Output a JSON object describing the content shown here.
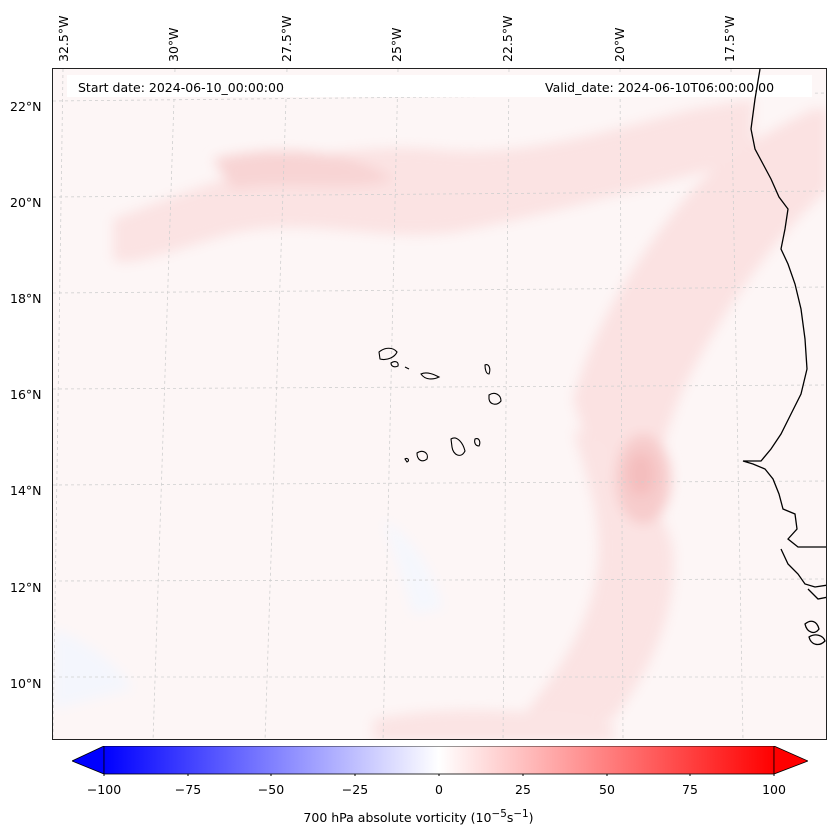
{
  "header": {
    "start_date": "Start date: 2024-06-10_00:00:00",
    "valid_date": "Valid_date: 2024-06-10T06:00:00.00"
  },
  "longitude_labels": [
    "32.5°W",
    "30°W",
    "27.5°W",
    "25°W",
    "22.5°W",
    "20°W",
    "17.5°W"
  ],
  "latitude_labels": [
    "22°N",
    "20°N",
    "18°N",
    "16°N",
    "14°N",
    "12°N",
    "10°N"
  ],
  "colorbar": {
    "min": -100,
    "max": 100,
    "tick_labels": [
      "−100",
      "−75",
      "−50",
      "−25",
      "0",
      "25",
      "50",
      "75",
      "100"
    ],
    "low_color": "#0000ff",
    "mid_color": "#ffffff",
    "high_color": "#ff0000",
    "extend": "both"
  },
  "field": {
    "variable": "700 hPa absolute vorticity",
    "colormap": "bwr",
    "background_value_color": "#fdf6f6"
  }
}
